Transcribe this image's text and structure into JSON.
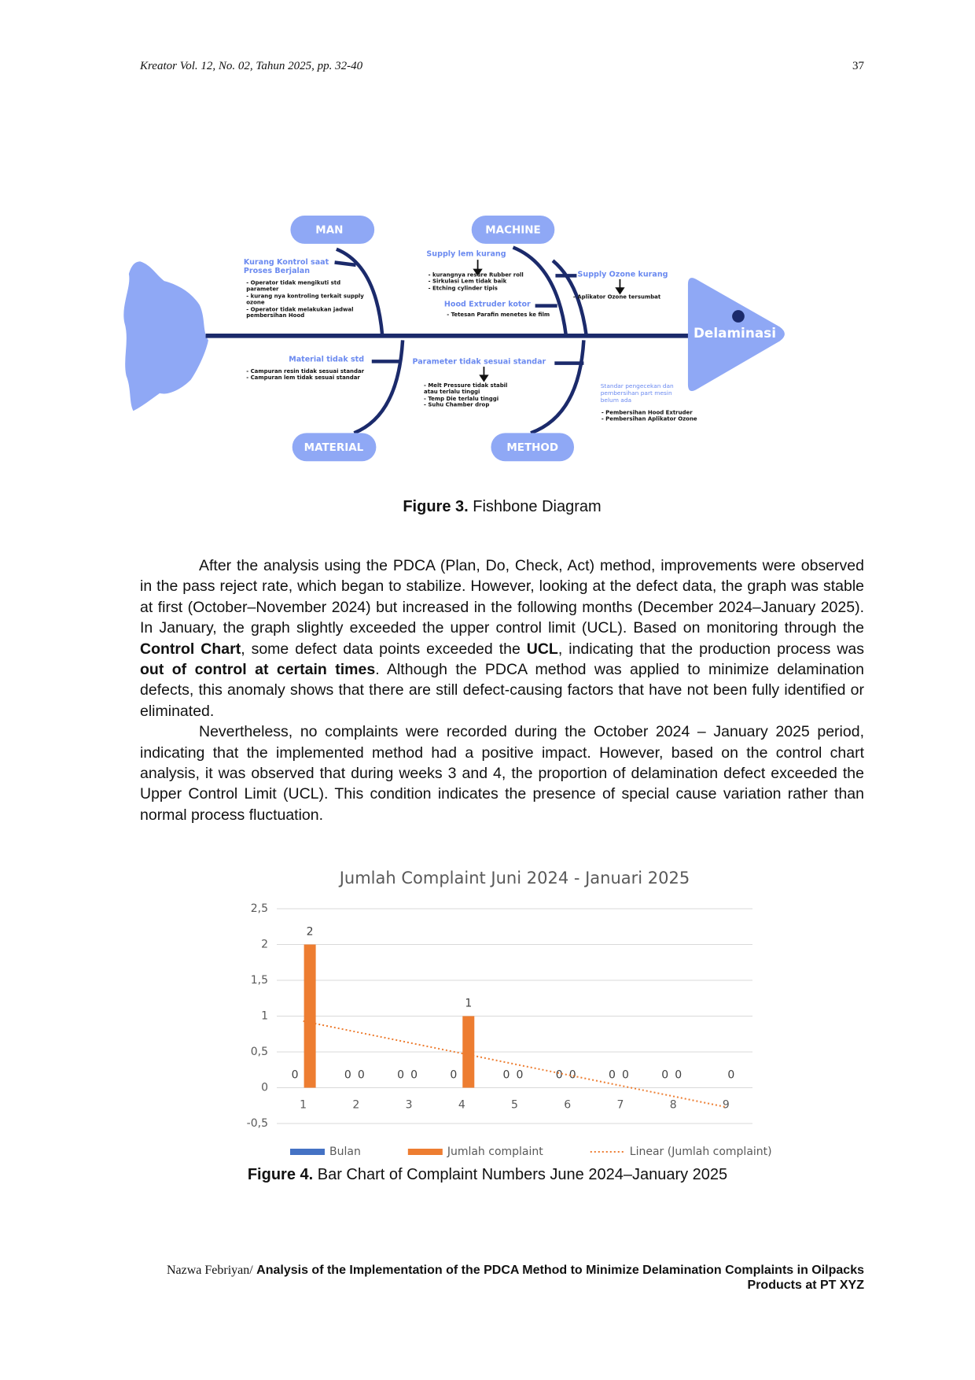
{
  "header": {
    "journal": "Kreator Vol. 12, No. 02, Tahun 2025, pp. 32-40",
    "page": "37"
  },
  "fishbone": {
    "effect": "Delaminasi",
    "categories": [
      {
        "name": "MAN",
        "causes": [
          {
            "title": "Kurang Kontrol saat Proses Berjalan",
            "items": [
              "- Operator tidak mengikuti std parameter",
              "- kurang nya kontroling terkait supply ozone",
              "- Operator tidak melakukan jadwal pembersihan Hood"
            ]
          }
        ]
      },
      {
        "name": "MACHINE",
        "causes": [
          {
            "title": "Supply lem kurang",
            "items": [
              "- kurangnya resure Rubber roll",
              "- Sirkulasi Lem tidak baik",
              "- Etching cylinder tipis"
            ]
          },
          {
            "title": "Hood Extruder kotor",
            "items": [
              "- Tetesan Parafin menetes ke film"
            ]
          },
          {
            "title": "Supply Ozone kurang",
            "items": [
              "- Aplikator Ozone tersumbat"
            ]
          }
        ]
      },
      {
        "name": "MATERIAL",
        "causes": [
          {
            "title": "Material tidak std",
            "items": [
              "- Campuran resin tidak sesuai standar",
              "- Campuran lem tidak sesuai standar"
            ]
          }
        ]
      },
      {
        "name": "METHOD",
        "causes": [
          {
            "title": "Parameter tidak sesuai standar",
            "items": [
              "- Melt Pressure tidak stabil atau terlalu tinggi",
              "- Temp Die terlalu tinggi",
              "- Suhu Chamber drop"
            ]
          },
          {
            "title": "Standar pengecekan dan pembersihan part mesin belum ada",
            "items": [
              "- Pembersihan Hood Extruder",
              "- Pembersihan Aplikator Ozone"
            ]
          }
        ]
      }
    ]
  },
  "figure3_caption": {
    "label": "Figure 3.",
    "text": "Fishbone Diagram"
  },
  "paragraphs": [
    [
      "After the analysis using the PDCA (Plan, Do, Check, Act) method, improvements were observed in the pass reject rate, which began to stabilize. However, looking at the defect data, the graph was stable at first (October–November 2024) but increased in the following months (December 2024–January 2025). In January, the graph slightly exceeded the upper control limit (UCL). Based on monitoring through the ",
      {
        "text": "Control Chart",
        "bold": true
      },
      ", some defect data points exceeded the ",
      {
        "text": "UCL",
        "bold": true
      },
      ", indicating that the production process was ",
      {
        "text": "out of control at certain times",
        "bold": true
      },
      ". Although the PDCA method was applied to minimize delamination defects, this anomaly shows that there are still defect-causing factors that have not been fully identified or eliminated."
    ],
    [
      "Nevertheless, no complaints were recorded during the October 2024 – January 2025 period, indicating that the implemented method had a positive impact. However, based on the control chart analysis, it was observed that during weeks 3 and 4, the proportion of delamination defect exceeded the Upper Control Limit (UCL). This condition indicates the presence of special cause variation rather than normal process fluctuation."
    ]
  ],
  "chart_data": {
    "type": "bar",
    "title": "Jumlah Complaint Juni 2024 - Januari 2025",
    "categories": [
      "1",
      "2",
      "3",
      "4",
      "5",
      "6",
      "7",
      "8",
      "9"
    ],
    "series": [
      {
        "name": "Bulan",
        "color": "#4472c4",
        "values": [
          0,
          0,
          0,
          0,
          0,
          0,
          0,
          0,
          null
        ]
      },
      {
        "name": "Jumlah complaint",
        "color": "#ed7d31",
        "values": [
          2,
          0,
          0,
          1,
          0,
          0,
          0,
          0,
          0
        ]
      },
      {
        "name": "Linear (Jumlah complaint)",
        "type": "line",
        "dashed": true,
        "color": "#ed7d31",
        "values": [
          0.93,
          0.78,
          0.63,
          0.48,
          0.33,
          0.18,
          0.03,
          -0.12,
          -0.27
        ]
      }
    ],
    "ylim": [
      -0.5,
      2.5
    ],
    "yticks": [
      {
        "value": -0.5,
        "label": "-0,5"
      },
      0,
      {
        "value": 0.5,
        "label": "0,5"
      },
      1,
      {
        "value": 1.5,
        "label": "1,5"
      },
      2,
      {
        "value": 2.5,
        "label": "2,5"
      }
    ],
    "grid": true,
    "data_labels": true,
    "legend": "bottom"
  },
  "figure4_caption": {
    "label": "Figure 4.",
    "text": "Bar Chart of Complaint Numbers June 2024–January 2025"
  },
  "footer": {
    "author": "Nazwa Febriyan/",
    "title": "Analysis of the Implementation of the PDCA Method to Minimize Delamination Complaints in Oilpacks Products at PT XYZ"
  }
}
